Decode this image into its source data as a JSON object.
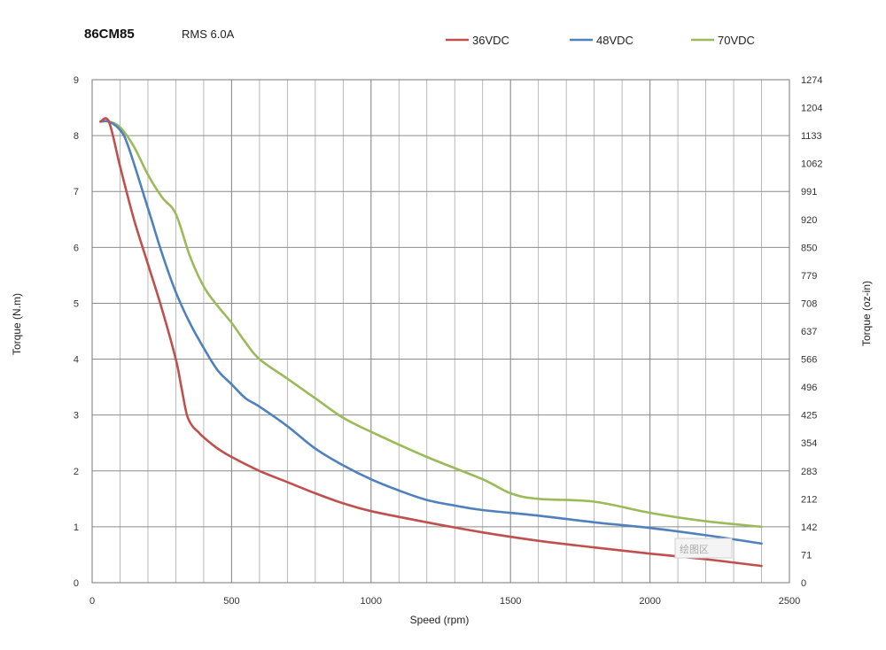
{
  "header": {
    "model": "86CM85",
    "current": "RMS 6.0A"
  },
  "watermark": "绘图区",
  "chart_data": {
    "type": "line",
    "xlabel": "Speed (rpm)",
    "ylabel": "Torque (N.m)",
    "y2label": "Torque (oz-in)",
    "xlim": [
      0,
      2500
    ],
    "ylim": [
      0,
      9
    ],
    "x_ticks": [
      0,
      500,
      1000,
      1500,
      2000,
      2500
    ],
    "y_ticks": [
      0,
      1,
      2,
      3,
      4,
      5,
      6,
      7,
      8,
      9
    ],
    "y2_ticks": [
      0,
      71,
      142,
      212,
      283,
      354,
      425,
      496,
      566,
      637,
      708,
      779,
      850,
      920,
      991,
      1062,
      1133,
      1204,
      1274
    ],
    "grid": true,
    "legend_position": "top-right",
    "series": [
      {
        "name": "36VDC",
        "color": "#c0504d",
        "x": [
          30,
          60,
          100,
          150,
          200,
          250,
          300,
          320,
          340,
          360,
          380,
          400,
          450,
          500,
          600,
          700,
          800,
          900,
          1000,
          1200,
          1400,
          1600,
          1800,
          2000,
          2200,
          2400
        ],
        "y": [
          8.25,
          8.25,
          7.45,
          6.5,
          5.7,
          4.9,
          4.0,
          3.5,
          3.0,
          2.8,
          2.7,
          2.6,
          2.4,
          2.25,
          2.0,
          1.8,
          1.6,
          1.42,
          1.28,
          1.08,
          0.9,
          0.75,
          0.63,
          0.52,
          0.42,
          0.3
        ]
      },
      {
        "name": "48VDC",
        "color": "#4f81bd",
        "x": [
          30,
          60,
          100,
          130,
          200,
          250,
          300,
          350,
          400,
          450,
          500,
          550,
          600,
          700,
          800,
          900,
          1000,
          1100,
          1200,
          1300,
          1400,
          1600,
          1800,
          2000,
          2200,
          2400
        ],
        "y": [
          8.25,
          8.25,
          8.1,
          7.8,
          6.7,
          5.9,
          5.2,
          4.65,
          4.2,
          3.8,
          3.55,
          3.3,
          3.15,
          2.8,
          2.4,
          2.1,
          1.85,
          1.65,
          1.48,
          1.38,
          1.3,
          1.2,
          1.08,
          0.98,
          0.85,
          0.7
        ]
      },
      {
        "name": "70VDC",
        "color": "#9bbb59",
        "x": [
          30,
          60,
          100,
          150,
          200,
          250,
          300,
          350,
          400,
          450,
          500,
          550,
          600,
          700,
          800,
          900,
          1000,
          1200,
          1400,
          1500,
          1600,
          1800,
          2000,
          2200,
          2400
        ],
        "y": [
          8.25,
          8.25,
          8.15,
          7.8,
          7.3,
          6.9,
          6.6,
          5.85,
          5.3,
          4.95,
          4.65,
          4.3,
          4.0,
          3.65,
          3.3,
          2.95,
          2.7,
          2.25,
          1.85,
          1.6,
          1.5,
          1.45,
          1.25,
          1.1,
          1.0
        ]
      }
    ]
  }
}
